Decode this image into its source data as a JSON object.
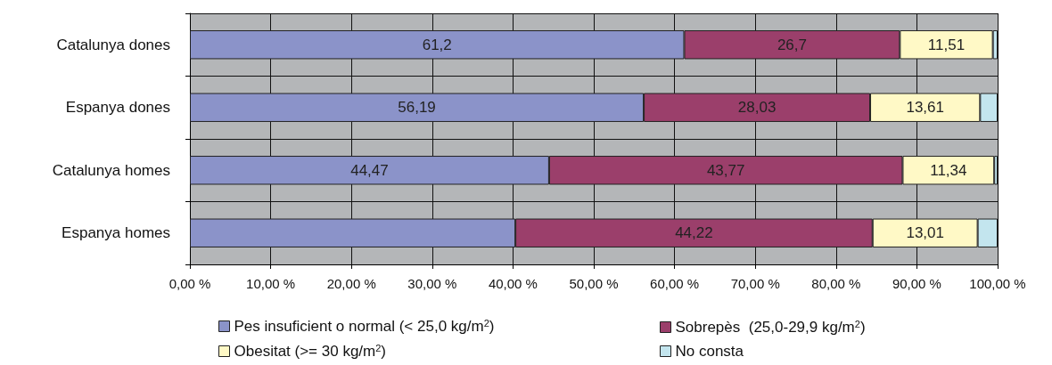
{
  "chart_data": {
    "type": "bar",
    "orientation": "horizontal",
    "stacked": true,
    "categories": [
      "Catalunya dones",
      "Espanya dones",
      "Catalunya homes",
      "Espanya homes"
    ],
    "series": [
      {
        "name": "Pes insuficient o normal (< 25,0 kg/m$^{2}$)",
        "color": "#8b93c9",
        "values": [
          61.2,
          56.19,
          44.47,
          40.3
        ],
        "value_labels": [
          "61,2",
          "56,19",
          "44,47",
          null
        ]
      },
      {
        "name": "Sobrepès  (25,0-29,9 kg/m$^{2}$)",
        "color": "#9b3f6b",
        "values": [
          26.7,
          28.03,
          43.77,
          44.22
        ],
        "value_labels": [
          "26,7",
          "28,03",
          "43,77",
          "44,22"
        ]
      },
      {
        "name": "Obesitat (>= 30 kg/m$^{2}$)",
        "color": "#fff9c6",
        "values": [
          11.51,
          13.61,
          11.34,
          13.01
        ],
        "value_labels": [
          "11,51",
          "13,61",
          "11,34",
          "13,01"
        ]
      },
      {
        "name": "No consta",
        "color": "#c3e5ee",
        "values": [
          0.59,
          2.17,
          0.42,
          2.47
        ],
        "value_labels": [
          null,
          null,
          null,
          null
        ]
      }
    ],
    "xlim": [
      0,
      100
    ],
    "xticks": [
      {
        "value": 0,
        "label": "0,00 %"
      },
      {
        "value": 10,
        "label": "10,00 %"
      },
      {
        "value": 20,
        "label": "20,00 %"
      },
      {
        "value": 30,
        "label": "30,00 %"
      },
      {
        "value": 40,
        "label": "40,00 %"
      },
      {
        "value": 50,
        "label": "50,00 %"
      },
      {
        "value": 60,
        "label": "60,00 %"
      },
      {
        "value": 70,
        "label": "70,00 %"
      },
      {
        "value": 80,
        "label": "80,00 %"
      },
      {
        "value": 90,
        "label": "90,00 %"
      },
      {
        "value": 100,
        "label": "100,00 %"
      }
    ],
    "grid": true,
    "legend": "bottom"
  }
}
